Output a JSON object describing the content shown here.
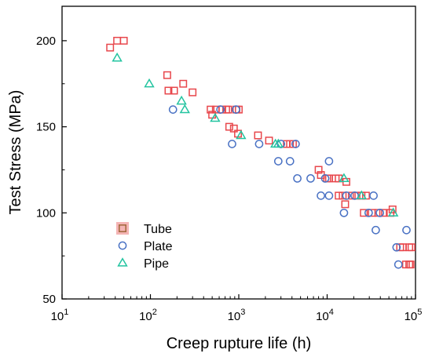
{
  "chart_data": {
    "type": "scatter",
    "xscale": "log",
    "xlabel": "Creep rupture life (h)",
    "ylabel": "Test Stress (MPa)",
    "xlim": [
      10,
      100000
    ],
    "ylim": [
      50,
      220
    ],
    "xticks": [
      {
        "value": 10,
        "base": "10",
        "exp": "1"
      },
      {
        "value": 100,
        "base": "10",
        "exp": "2"
      },
      {
        "value": 1000,
        "base": "10",
        "exp": "3"
      },
      {
        "value": 10000,
        "base": "10",
        "exp": "4"
      },
      {
        "value": 100000,
        "base": "10",
        "exp": "5"
      }
    ],
    "yticks": [
      {
        "value": 50,
        "label": "50"
      },
      {
        "value": 100,
        "label": "100"
      },
      {
        "value": 150,
        "label": "150"
      },
      {
        "value": 200,
        "label": "200"
      }
    ],
    "grid": false,
    "legend_position": "bottom-left",
    "series": [
      {
        "name": "Tube",
        "marker": "square",
        "points": [
          [
            35,
            196
          ],
          [
            42,
            200
          ],
          [
            50,
            200
          ],
          [
            155,
            180
          ],
          [
            160,
            171
          ],
          [
            185,
            171
          ],
          [
            235,
            175
          ],
          [
            300,
            170
          ],
          [
            480,
            160
          ],
          [
            500,
            157
          ],
          [
            550,
            160
          ],
          [
            650,
            160
          ],
          [
            720,
            160
          ],
          [
            760,
            160
          ],
          [
            780,
            150
          ],
          [
            880,
            149
          ],
          [
            940,
            160
          ],
          [
            980,
            146
          ],
          [
            1000,
            160
          ],
          [
            1650,
            145
          ],
          [
            2200,
            142
          ],
          [
            3500,
            140
          ],
          [
            3800,
            140
          ],
          [
            4100,
            140
          ],
          [
            8000,
            125
          ],
          [
            8500,
            122
          ],
          [
            10000,
            120
          ],
          [
            10500,
            120
          ],
          [
            12500,
            120
          ],
          [
            13500,
            120
          ],
          [
            16500,
            118
          ],
          [
            13500,
            110
          ],
          [
            15000,
            110
          ],
          [
            16000,
            105
          ],
          [
            19000,
            110
          ],
          [
            21500,
            110
          ],
          [
            24500,
            110
          ],
          [
            27500,
            110
          ],
          [
            26000,
            100
          ],
          [
            32000,
            100
          ],
          [
            38000,
            100
          ],
          [
            43000,
            100
          ],
          [
            52000,
            100
          ],
          [
            55000,
            102
          ],
          [
            67000,
            80
          ],
          [
            72000,
            80
          ],
          [
            85000,
            80
          ],
          [
            90000,
            80
          ],
          [
            78000,
            70
          ],
          [
            85000,
            70
          ],
          [
            88000,
            70
          ]
        ]
      },
      {
        "name": "Plate",
        "marker": "circle",
        "points": [
          [
            180,
            160
          ],
          [
            620,
            160
          ],
          [
            930,
            160
          ],
          [
            840,
            140
          ],
          [
            1700,
            140
          ],
          [
            3000,
            140
          ],
          [
            4400,
            140
          ],
          [
            2800,
            130
          ],
          [
            3800,
            130
          ],
          [
            4600,
            120
          ],
          [
            6500,
            120
          ],
          [
            9500,
            120
          ],
          [
            10500,
            130
          ],
          [
            8500,
            110
          ],
          [
            10500,
            110
          ],
          [
            15500,
            100
          ],
          [
            16500,
            110
          ],
          [
            20500,
            110
          ],
          [
            29500,
            100
          ],
          [
            33500,
            110
          ],
          [
            35500,
            90
          ],
          [
            39500,
            100
          ],
          [
            61000,
            80
          ],
          [
            64000,
            70
          ],
          [
            79000,
            90
          ]
        ]
      },
      {
        "name": "Pipe",
        "marker": "triangle",
        "points": [
          [
            42,
            190
          ],
          [
            97,
            175
          ],
          [
            225,
            165
          ],
          [
            245,
            160
          ],
          [
            540,
            155
          ],
          [
            1060,
            145
          ],
          [
            2600,
            140
          ],
          [
            2800,
            140
          ],
          [
            15500,
            120
          ],
          [
            24500,
            110
          ],
          [
            56000,
            100
          ]
        ]
      }
    ],
    "colors": {
      "Tube": "#e8474c",
      "Tube_legend_edge": "#a0673a",
      "Plate": "#4a72c4",
      "Pipe": "#23c4a0",
      "legend_bg": "#f4b4b4"
    }
  }
}
